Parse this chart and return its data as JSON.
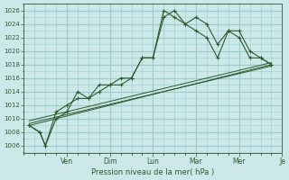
{
  "xlabel": "Pression niveau de la mer( hPa )",
  "background_color": "#cce8e8",
  "grid_color": "#99cccc",
  "line_color": "#2d5a2d",
  "ylim": [
    1005,
    1027
  ],
  "yticks": [
    1006,
    1008,
    1010,
    1012,
    1014,
    1016,
    1018,
    1020,
    1022,
    1024,
    1026
  ],
  "xlim": [
    0,
    24
  ],
  "day_labels": [
    "Ven",
    "Dim",
    "Lun",
    "Mar",
    "Mer",
    "Je"
  ],
  "day_positions": [
    4,
    8,
    12,
    16,
    20,
    24
  ],
  "series1_x": [
    0.5,
    1.5,
    2,
    3,
    4,
    5,
    6,
    7,
    8,
    9,
    10,
    11,
    12,
    13,
    14,
    15,
    16,
    17,
    18,
    19,
    20,
    21,
    22,
    23
  ],
  "series1_y": [
    1009,
    1008,
    1006,
    1010,
    1011,
    1014,
    1013,
    1014,
    1015,
    1016,
    1016,
    1019,
    1019,
    1026,
    1025,
    1024,
    1023,
    1022,
    1019,
    1023,
    1022,
    1019,
    1019,
    1018
  ],
  "series2_x": [
    0.5,
    1.5,
    2,
    3,
    4,
    5,
    6,
    7,
    8,
    9,
    10,
    11,
    12,
    13,
    14,
    15,
    16,
    17,
    18,
    19,
    20,
    21,
    22,
    23
  ],
  "series2_y": [
    1009,
    1008,
    1006,
    1011,
    1012,
    1013,
    1013,
    1015,
    1015,
    1015,
    1016,
    1019,
    1019,
    1025,
    1026,
    1024,
    1025,
    1024,
    1021,
    1023,
    1023,
    1020,
    1019,
    1018
  ],
  "trend1_x": [
    0.5,
    23
  ],
  "trend1_y": [
    1009,
    1018
  ],
  "trend2_x": [
    0.5,
    23
  ],
  "trend2_y": [
    1009.3,
    1017.8
  ],
  "trend3_x": [
    0.5,
    23
  ],
  "trend3_y": [
    1009.7,
    1018.3
  ]
}
